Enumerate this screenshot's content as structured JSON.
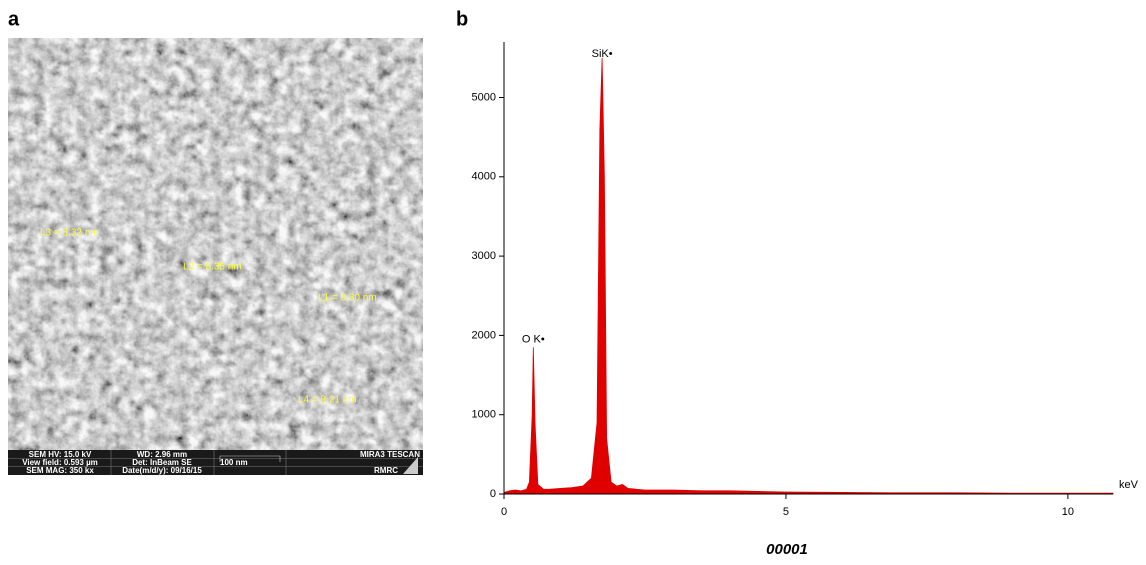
{
  "panel_labels": [
    "a",
    "b"
  ],
  "sem": {
    "measurements": [
      "L3 = 8.32 nm",
      "L2 = 8.35 nm",
      "L1 = 9.30 nm",
      "L4 = 8.21 nm"
    ],
    "info": [
      "SEM HV: 15.0 kV",
      "WD: 2.96 mm",
      "MIRA3 TESCAN",
      "View field: 0.593 µm",
      "Det: InBeam SE",
      "100 nm",
      "SEM MAG: 350 kx",
      "Date(m/d/y): 09/16/15",
      "RMRC"
    ]
  },
  "chart_data": {
    "type": "area",
    "color": "#e00000",
    "x_label": "keV",
    "x": [
      0,
      0.1,
      0.2,
      0.3,
      0.4,
      0.45,
      0.5,
      0.52,
      0.55,
      0.6,
      0.7,
      0.8,
      1.0,
      1.2,
      1.4,
      1.55,
      1.65,
      1.7,
      1.74,
      1.78,
      1.82,
      1.9,
      2.0,
      2.1,
      2.2,
      2.5,
      3.0,
      3.5,
      4.0,
      5.0,
      6.0,
      7.0,
      8.0,
      9.0,
      10.0,
      10.8
    ],
    "values": [
      20,
      40,
      50,
      40,
      60,
      150,
      1000,
      1850,
      900,
      120,
      60,
      60,
      70,
      80,
      100,
      200,
      900,
      4600,
      5500,
      4000,
      700,
      150,
      100,
      120,
      70,
      50,
      50,
      40,
      40,
      25,
      20,
      15,
      15,
      10,
      10,
      10
    ],
    "xlim": [
      0,
      10.8
    ],
    "ylim": [
      0,
      5700
    ],
    "xticks": [
      0,
      5,
      10
    ],
    "yticks": [
      0,
      1000,
      2000,
      3000,
      4000,
      5000
    ],
    "annotations": [
      {
        "text": "O K•",
        "x": 0.52,
        "y": 1950
      },
      {
        "text": "SiK•",
        "x": 1.74,
        "y": 5550
      }
    ]
  },
  "caption": "00001"
}
